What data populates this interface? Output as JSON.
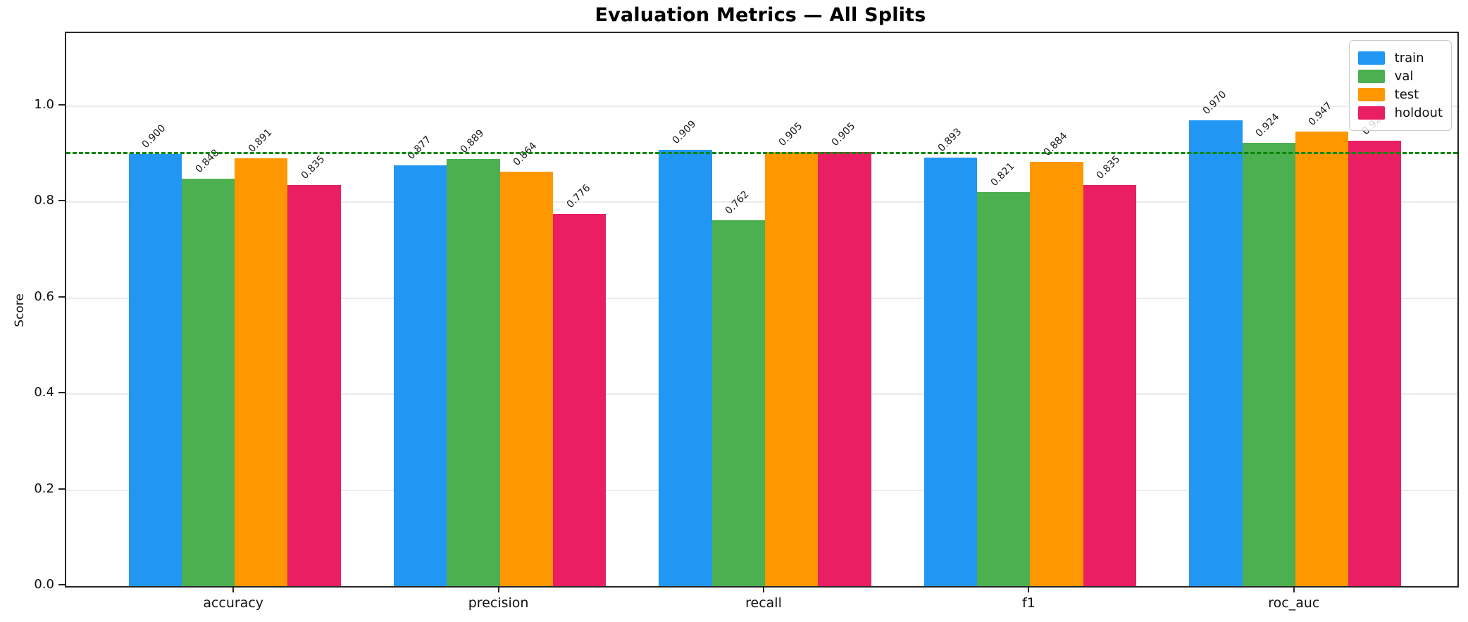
{
  "chart_data": {
    "type": "bar",
    "title": "Evaluation Metrics — All Splits",
    "ylabel": "Score",
    "xlabel": "",
    "categories": [
      "accuracy",
      "precision",
      "recall",
      "f1",
      "roc_auc"
    ],
    "series": [
      {
        "name": "train",
        "color": "#2196F3",
        "values": [
          0.9,
          0.877,
          0.909,
          0.893,
          0.97
        ]
      },
      {
        "name": "val",
        "color": "#4CAF50",
        "values": [
          0.848,
          0.889,
          0.762,
          0.821,
          0.924
        ]
      },
      {
        "name": "test",
        "color": "#FF9800",
        "values": [
          0.891,
          0.864,
          0.905,
          0.884,
          0.947
        ]
      },
      {
        "name": "holdout",
        "color": "#E91E63",
        "values": [
          0.835,
          0.776,
          0.905,
          0.835,
          0.928
        ]
      }
    ],
    "value_labels_decimals": 3,
    "value_labels_rotation_deg": 45,
    "yticks": [
      0.0,
      0.2,
      0.4,
      0.6,
      0.8,
      1.0
    ],
    "ytick_labels": [
      "0.0",
      "0.2",
      "0.4",
      "0.6",
      "0.8",
      "1.0"
    ],
    "ylim": [
      0,
      1.152
    ],
    "grid": "horizontal",
    "gridline_color": "#ebebeb",
    "reference_line": {
      "value": 0.9,
      "color": "#0b870b",
      "style": "dashed"
    },
    "legend": {
      "position": "upper-right",
      "entries": [
        "train",
        "val",
        "test",
        "holdout"
      ]
    }
  }
}
